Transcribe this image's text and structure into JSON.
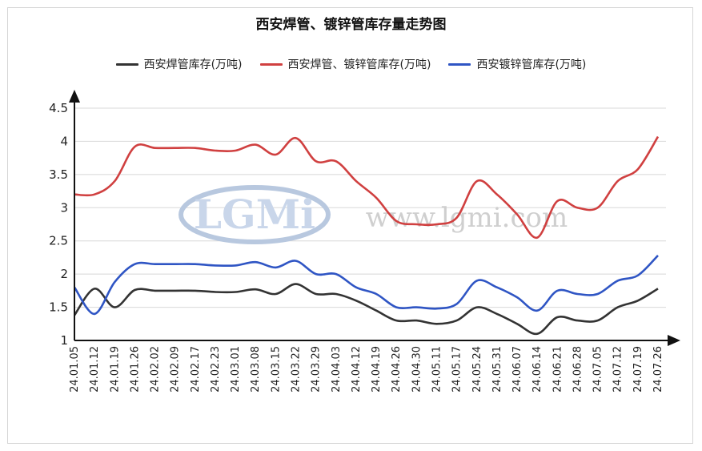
{
  "chart_data": {
    "type": "line",
    "title": "西安焊管、镀锌管库存量走势图",
    "xlabel": "",
    "ylabel": "",
    "ylim": [
      1,
      4.5
    ],
    "yticks": [
      "1",
      "1.5",
      "2",
      "2.5",
      "3",
      "3.5",
      "4",
      "4.5"
    ],
    "grid": true,
    "legend_position": "top",
    "x": [
      "24.01.05",
      "24.01.12",
      "24.01.19",
      "24.01.26",
      "24.02.02",
      "24.02.09",
      "24.02.17",
      "24.02.23",
      "24.03.01",
      "24.03.08",
      "24.03.15",
      "24.03.22",
      "24.03.29",
      "24.04.03",
      "24.04.12",
      "24.04.19",
      "24.04.26",
      "24.04.30",
      "24.05.11",
      "24.05.17",
      "24.05.24",
      "24.05.31",
      "24.06.07",
      "24.06.14",
      "24.06.21",
      "24.06.28",
      "24.07.05",
      "24.07.12",
      "24.07.19",
      "24.07.26"
    ],
    "series": [
      {
        "name": "西安焊管库存(万吨)",
        "color": "#333333",
        "values": [
          1.38,
          1.78,
          1.5,
          1.76,
          1.75,
          1.75,
          1.75,
          1.73,
          1.73,
          1.77,
          1.7,
          1.85,
          1.7,
          1.7,
          1.6,
          1.45,
          1.3,
          1.3,
          1.25,
          1.3,
          1.5,
          1.4,
          1.25,
          1.1,
          1.35,
          1.3,
          1.3,
          1.5,
          1.6,
          1.78
        ]
      },
      {
        "name": "西安焊管、镀锌管库存(万吨)",
        "color": "#d04040",
        "values": [
          3.2,
          3.2,
          3.4,
          3.92,
          3.9,
          3.9,
          3.9,
          3.86,
          3.86,
          3.95,
          3.8,
          4.05,
          3.7,
          3.7,
          3.4,
          3.15,
          2.8,
          2.75,
          2.75,
          2.85,
          3.4,
          3.2,
          2.9,
          2.55,
          3.1,
          3.0,
          3.0,
          3.4,
          3.58,
          4.07
        ]
      },
      {
        "name": "西安镀锌管库存(万吨)",
        "color": "#2f55c4",
        "values": [
          1.8,
          1.4,
          1.88,
          2.15,
          2.15,
          2.15,
          2.15,
          2.13,
          2.13,
          2.18,
          2.1,
          2.2,
          2.0,
          2.0,
          1.8,
          1.7,
          1.5,
          1.5,
          1.48,
          1.55,
          1.9,
          1.8,
          1.65,
          1.45,
          1.75,
          1.7,
          1.7,
          1.9,
          1.98,
          2.28
        ]
      }
    ]
  },
  "watermark": {
    "logo_text": "LGMi",
    "site_text": "www.lgmi.com"
  }
}
